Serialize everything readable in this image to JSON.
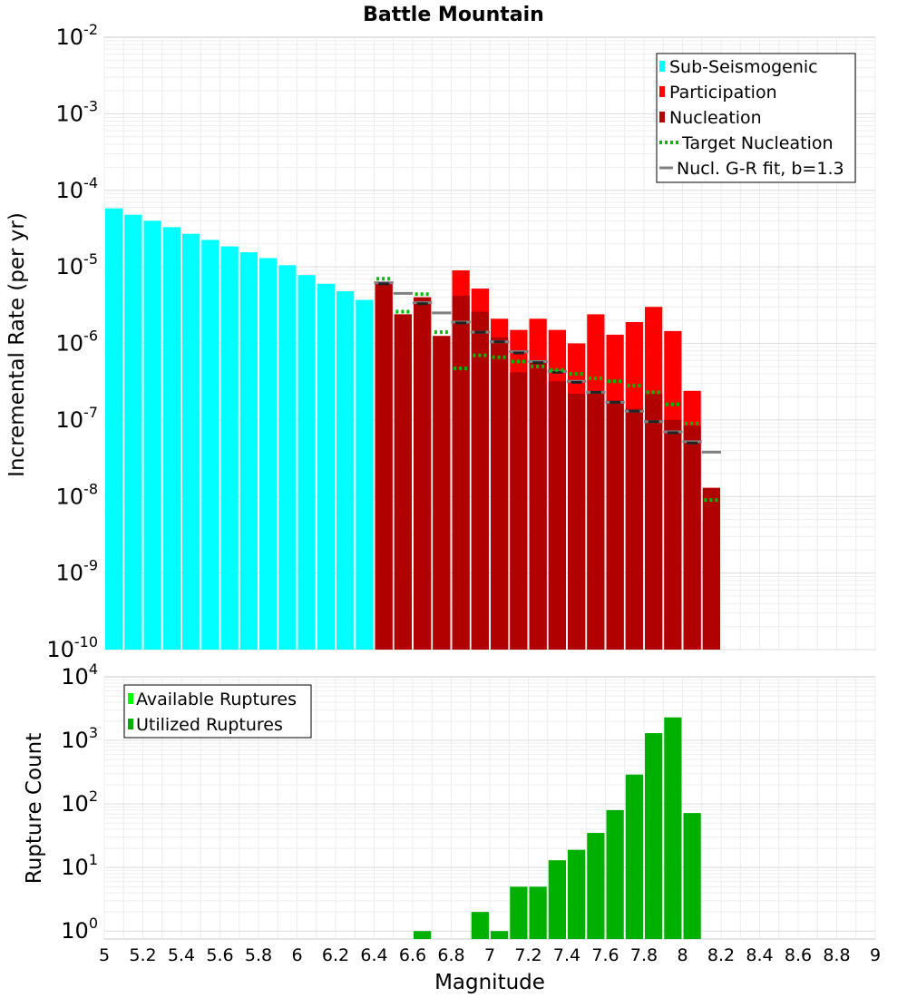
{
  "chart_data": [
    {
      "panel": "top",
      "type": "bar",
      "title": "Battle Mountain",
      "xlabel": "",
      "ylabel": "Incremental Rate (per yr)",
      "yscale": "log",
      "ylim": [
        1e-10,
        0.01
      ],
      "xlim": [
        5,
        9
      ],
      "y_tick_base": "10",
      "y_tick_exponents": [
        "-10",
        "-9",
        "-8",
        "-7",
        "-6",
        "-5",
        "-4",
        "-3",
        "-2"
      ],
      "grid": true,
      "legend_position": "top-right",
      "legend": [
        {
          "label": "Sub-Seismogenic",
          "color": "#00ffff",
          "style": "box"
        },
        {
          "label": "Participation",
          "color": "#ff0000",
          "style": "box"
        },
        {
          "label": "Nucleation",
          "color": "#b00000",
          "style": "box"
        },
        {
          "label": " Target Nucleation",
          "color": "#00bb00",
          "style": "dotted"
        },
        {
          "label": "Nucl. G-R fit, b=1.3",
          "color": "#808080",
          "style": "line"
        }
      ],
      "sub_seismogenic": {
        "x": [
          5.05,
          5.15,
          5.25,
          5.35,
          5.45,
          5.55,
          5.65,
          5.75,
          5.85,
          5.95,
          6.05,
          6.15,
          6.25,
          6.35
        ],
        "values": [
          5.8e-05,
          4.8e-05,
          4e-05,
          3.3e-05,
          2.7e-05,
          2.25e-05,
          1.85e-05,
          1.55e-05,
          1.3e-05,
          1.05e-05,
          7.8e-06,
          6e-06,
          4.8e-06,
          3.7e-06
        ]
      },
      "participation": {
        "x": [
          6.45,
          6.55,
          6.65,
          6.75,
          6.85,
          6.95,
          7.05,
          7.15,
          7.25,
          7.35,
          7.45,
          7.55,
          7.65,
          7.75,
          7.85,
          7.95,
          8.05,
          8.15
        ],
        "values": [
          6e-06,
          2.4e-06,
          4e-06,
          1.25e-06,
          9e-06,
          5.2e-06,
          2.1e-06,
          1.5e-06,
          2.1e-06,
          1.5e-06,
          1e-06,
          2.4e-06,
          1.3e-06,
          1.9e-06,
          3e-06,
          1.45e-06,
          2.4e-07,
          4.7e-09
        ]
      },
      "nucleation": {
        "x": [
          6.45,
          6.55,
          6.65,
          6.75,
          6.85,
          6.95,
          7.05,
          7.15,
          7.25,
          7.35,
          7.45,
          7.55,
          7.65,
          7.75,
          7.85,
          7.95,
          8.05,
          8.15
        ],
        "values": [
          6e-06,
          2.4e-06,
          4e-06,
          1.25e-06,
          4.2e-06,
          2.6e-06,
          1.2e-06,
          4.2e-07,
          6e-07,
          3.2e-07,
          2.2e-07,
          2.4e-07,
          1.8e-07,
          1.4e-07,
          2.2e-07,
          1e-07,
          8.5e-08,
          1.3e-08
        ]
      },
      "nucleation_level": {
        "x": [
          6.45,
          6.65,
          6.85,
          6.95,
          7.05,
          7.15,
          7.25,
          7.35,
          7.45,
          7.55,
          7.65,
          7.75,
          7.85,
          7.95,
          8.05
        ],
        "values": [
          6e-06,
          3.3e-06,
          1.85e-06,
          1.4e-06,
          1.05e-06,
          7.5e-07,
          5.6e-07,
          4.2e-07,
          3.1e-07,
          2.3e-07,
          1.7e-07,
          1.3e-07,
          9.5e-08,
          6.8e-08,
          5e-08
        ]
      },
      "target_nucleation": {
        "x": [
          6.45,
          6.55,
          6.65,
          6.75,
          6.85,
          6.95,
          7.05,
          7.15,
          7.25,
          7.35,
          7.45,
          7.55,
          7.65,
          7.75,
          7.85,
          7.95,
          8.05,
          8.15
        ],
        "values": [
          7e-06,
          2.6e-06,
          4.4e-06,
          1.4e-06,
          4.7e-07,
          7e-07,
          6.6e-07,
          5.8e-07,
          5e-07,
          4.5e-07,
          4e-07,
          3.5e-07,
          3.2e-07,
          2.8e-07,
          2.3e-07,
          1.6e-07,
          9e-08,
          9e-09
        ]
      },
      "gr_fit": {
        "x": [
          6.45,
          6.55,
          6.65,
          6.75,
          6.85,
          6.95,
          7.05,
          7.15,
          7.25,
          7.35,
          7.45,
          7.55,
          7.65,
          7.75,
          7.85,
          7.95,
          8.05,
          8.15
        ],
        "values": [
          6.2e-06,
          4.5e-06,
          3.4e-06,
          2.5e-06,
          1.9e-06,
          1.4e-06,
          1.05e-06,
          7.8e-07,
          5.8e-07,
          4.3e-07,
          3.2e-07,
          2.3e-07,
          1.7e-07,
          1.3e-07,
          9.5e-08,
          7e-08,
          5.2e-08,
          3.8e-08
        ]
      }
    },
    {
      "panel": "bottom",
      "type": "bar",
      "title": "",
      "xlabel": "Magnitude",
      "ylabel": "Rupture Count",
      "yscale": "log",
      "ylim": [
        0.75,
        10000.0
      ],
      "xlim": [
        5,
        9
      ],
      "x_ticks": [
        "5",
        "5.2",
        "5.4",
        "5.6",
        "5.8",
        "6",
        "6.2",
        "6.4",
        "6.6",
        "6.8",
        "7",
        "7.2",
        "7.4",
        "7.6",
        "7.8",
        "8",
        "8.2",
        "8.4",
        "8.6",
        "8.8",
        "9"
      ],
      "y_tick_base": "10",
      "y_tick_exponents": [
        "0",
        "1",
        "2",
        "3",
        "4"
      ],
      "grid": true,
      "legend_position": "top-left",
      "legend": [
        {
          "label": "Available Ruptures",
          "color": "#00ff00",
          "style": "box"
        },
        {
          "label": "Utilized Ruptures",
          "color": "#00b000",
          "style": "box"
        }
      ],
      "utilized_ruptures": {
        "x": [
          6.65,
          6.95,
          7.05,
          7.15,
          7.25,
          7.35,
          7.45,
          7.55,
          7.65,
          7.75,
          7.85,
          7.95,
          8.05
        ],
        "values": [
          1,
          2,
          1,
          5,
          5,
          13,
          19,
          35,
          80,
          290,
          1300,
          2300,
          72
        ]
      }
    }
  ]
}
